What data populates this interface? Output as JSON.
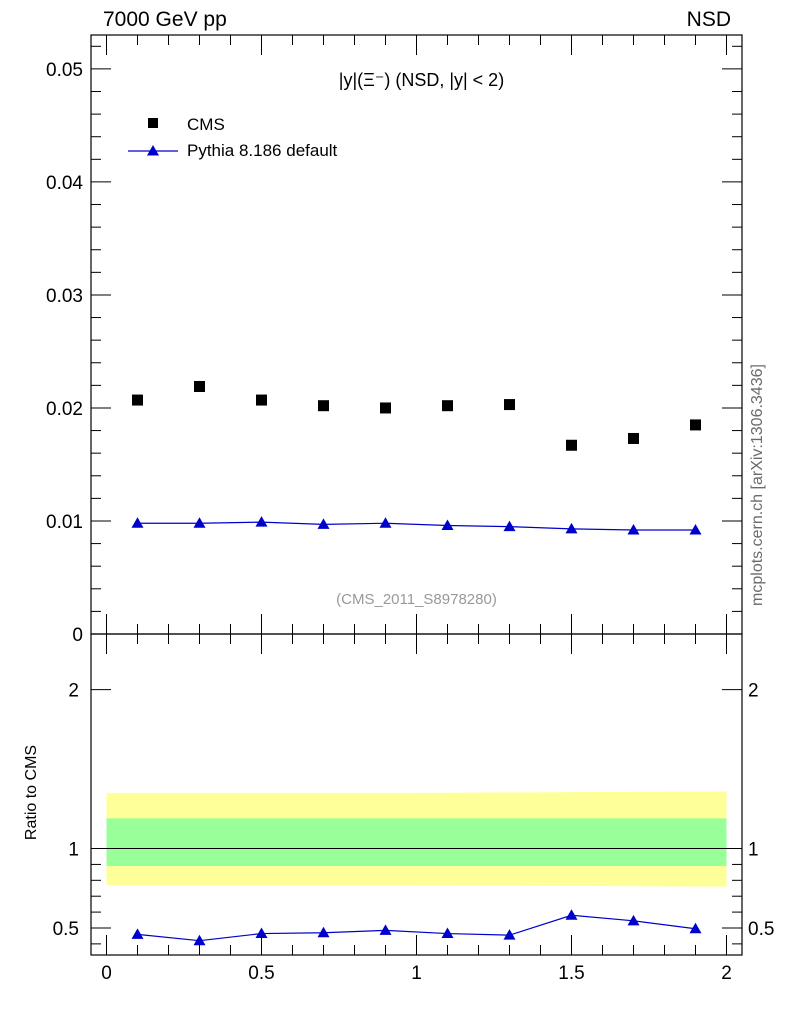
{
  "header": {
    "left": "7000 GeV pp",
    "right": "NSD"
  },
  "watermark": "mcplots.cern.ch [arXiv:1306.3436]",
  "chart_data": [
    {
      "type": "scatter",
      "title": "|y|(Ξ⁻) (NSD, |y| < 2)",
      "analysis_label": "(CMS_2011_S8978280)",
      "xlim": [
        -0.05,
        2.05
      ],
      "ylim": [
        0,
        0.053
      ],
      "yticks": [
        0,
        0.01,
        0.02,
        0.03,
        0.04,
        0.05
      ],
      "ytick_labels": [
        "0",
        "0.01",
        "0.02",
        "0.03",
        "0.04",
        "0.05"
      ],
      "legend_position": "top-left",
      "colors": {
        "cms": "#000000",
        "pythia": "#0000cc"
      },
      "series": [
        {
          "name": "CMS",
          "marker": "square",
          "x": [
            0.1,
            0.3,
            0.5,
            0.7,
            0.9,
            1.1,
            1.3,
            1.5,
            1.7,
            1.9
          ],
          "y": [
            0.0207,
            0.0219,
            0.0207,
            0.0202,
            0.02,
            0.0202,
            0.0203,
            0.0167,
            0.0173,
            0.0185
          ]
        },
        {
          "name": "Pythia 8.186 default",
          "marker": "triangle",
          "line": true,
          "x": [
            0.1,
            0.3,
            0.5,
            0.7,
            0.9,
            1.1,
            1.3,
            1.5,
            1.7,
            1.9
          ],
          "y": [
            0.0098,
            0.0098,
            0.0099,
            0.0097,
            0.0098,
            0.0096,
            0.0095,
            0.0093,
            0.0092,
            0.0092
          ]
        }
      ]
    },
    {
      "type": "line",
      "ylabel": "Ratio to CMS",
      "xlim": [
        -0.05,
        2.05
      ],
      "ylim": [
        0.33,
        2.35
      ],
      "xticks": [
        0,
        0.5,
        1,
        1.5,
        2
      ],
      "xtick_labels": [
        "0",
        "0.5",
        "1",
        "1.5",
        "2"
      ],
      "yticks": [
        0.5,
        1,
        2
      ],
      "ytick_labels": [
        "0.5",
        "1",
        "2"
      ],
      "reference_line": 1,
      "bands": [
        {
          "name": "yellow",
          "color": "#ffff99",
          "x": [
            0,
            1,
            2
          ],
          "low": [
            0.77,
            0.77,
            0.76
          ],
          "high": [
            1.35,
            1.35,
            1.36
          ]
        },
        {
          "name": "green",
          "color": "#99ff99",
          "x": [
            0,
            2
          ],
          "low": [
            0.89,
            0.89
          ],
          "high": [
            1.19,
            1.19
          ]
        }
      ],
      "series": [
        {
          "name": "Pythia 8.186 default",
          "x": [
            0.1,
            0.3,
            0.5,
            0.7,
            0.9,
            1.1,
            1.3,
            1.5,
            1.7,
            1.9
          ],
          "y": [
            0.46,
            0.42,
            0.465,
            0.47,
            0.485,
            0.465,
            0.455,
            0.58,
            0.545,
            0.495
          ]
        }
      ]
    }
  ]
}
